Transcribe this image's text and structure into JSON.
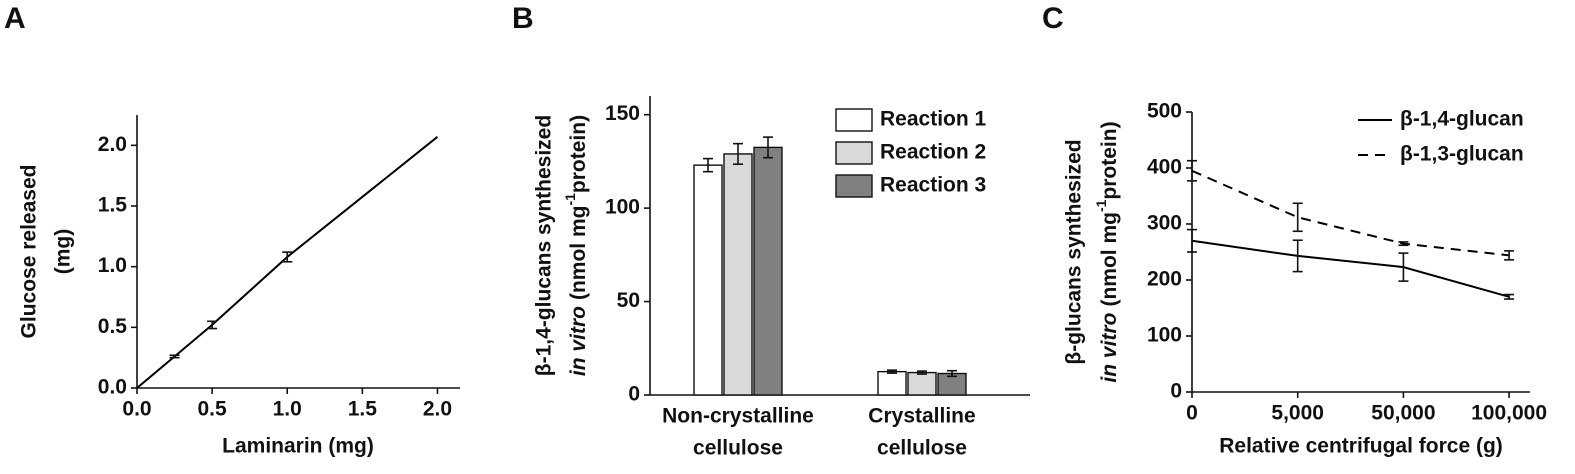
{
  "chart_data": [
    {
      "type": "line",
      "panel_label": "A",
      "x_label": "Laminarin (mg)",
      "y_label": [
        "Glucose released",
        "(mg)"
      ],
      "x": [
        0,
        0.25,
        0.5,
        1.0,
        2.0
      ],
      "values": [
        0,
        0.26,
        0.52,
        1.08,
        2.07
      ],
      "errors": [
        null,
        0.01,
        0.03,
        0.04,
        null
      ],
      "color": "#000000",
      "xlim": [
        0,
        2.15
      ],
      "ylim": [
        0,
        2.25
      ],
      "xticks": [
        {
          "value": 0,
          "label": "0.0"
        },
        0.5,
        {
          "value": 1,
          "label": "1.0"
        },
        1.5,
        {
          "value": 2,
          "label": "2.0"
        }
      ],
      "yticks": [
        {
          "value": 0,
          "label": "0.0"
        },
        0.5,
        {
          "value": 1,
          "label": "1.0"
        },
        1.5,
        {
          "value": 2,
          "label": "2.0"
        }
      ]
    },
    {
      "type": "bar",
      "panel_label": "B",
      "y_label": [
        "β-1,4-glucans synthesized",
        [
          "in vitro",
          "(nmol mg",
          "-1",
          "protein)"
        ]
      ],
      "categories": [
        [
          "Non-crystalline",
          "cellulose"
        ],
        [
          "Crystalline",
          "cellulose"
        ]
      ],
      "series": [
        {
          "name": "Reaction 1",
          "color": "#ffffff",
          "values": [
            123,
            12.5
          ],
          "errors": [
            3.5,
            0.8
          ]
        },
        {
          "name": "Reaction 2",
          "color": "#d9d9d9",
          "values": [
            129,
            12
          ],
          "errors": [
            5.5,
            0.8
          ]
        },
        {
          "name": "Reaction 3",
          "color": "#808080",
          "values": [
            132.5,
            11.5
          ],
          "errors": [
            5.5,
            1.5
          ]
        }
      ],
      "ylim": [
        0,
        160
      ],
      "yticks": [
        0,
        50,
        100,
        150
      ],
      "legend": "upper right"
    },
    {
      "type": "line",
      "panel_label": "C",
      "x_label": "Relative centrifugal force (g)",
      "y_label": [
        "β-glucans synthesized",
        [
          "in vitro",
          "(nmol mg",
          "-1",
          "protein)"
        ]
      ],
      "categories": [
        "0",
        "5,000",
        "50,000",
        "100,000"
      ],
      "series": [
        {
          "name": "β-1,4-glucan",
          "color": "#000000",
          "line_style": "solid",
          "values": [
            270,
            243,
            223,
            170
          ],
          "errors": [
            20,
            28,
            25,
            4
          ]
        },
        {
          "name": "β-1,3-glucan",
          "color": "#000000",
          "line_style": "dashed",
          "values": [
            395,
            312,
            265,
            244
          ],
          "errors": [
            18,
            25,
            3,
            8
          ]
        }
      ],
      "ylim": [
        0,
        500
      ],
      "yticks": [
        0,
        100,
        200,
        300,
        400,
        500
      ],
      "legend": "upper right"
    }
  ]
}
